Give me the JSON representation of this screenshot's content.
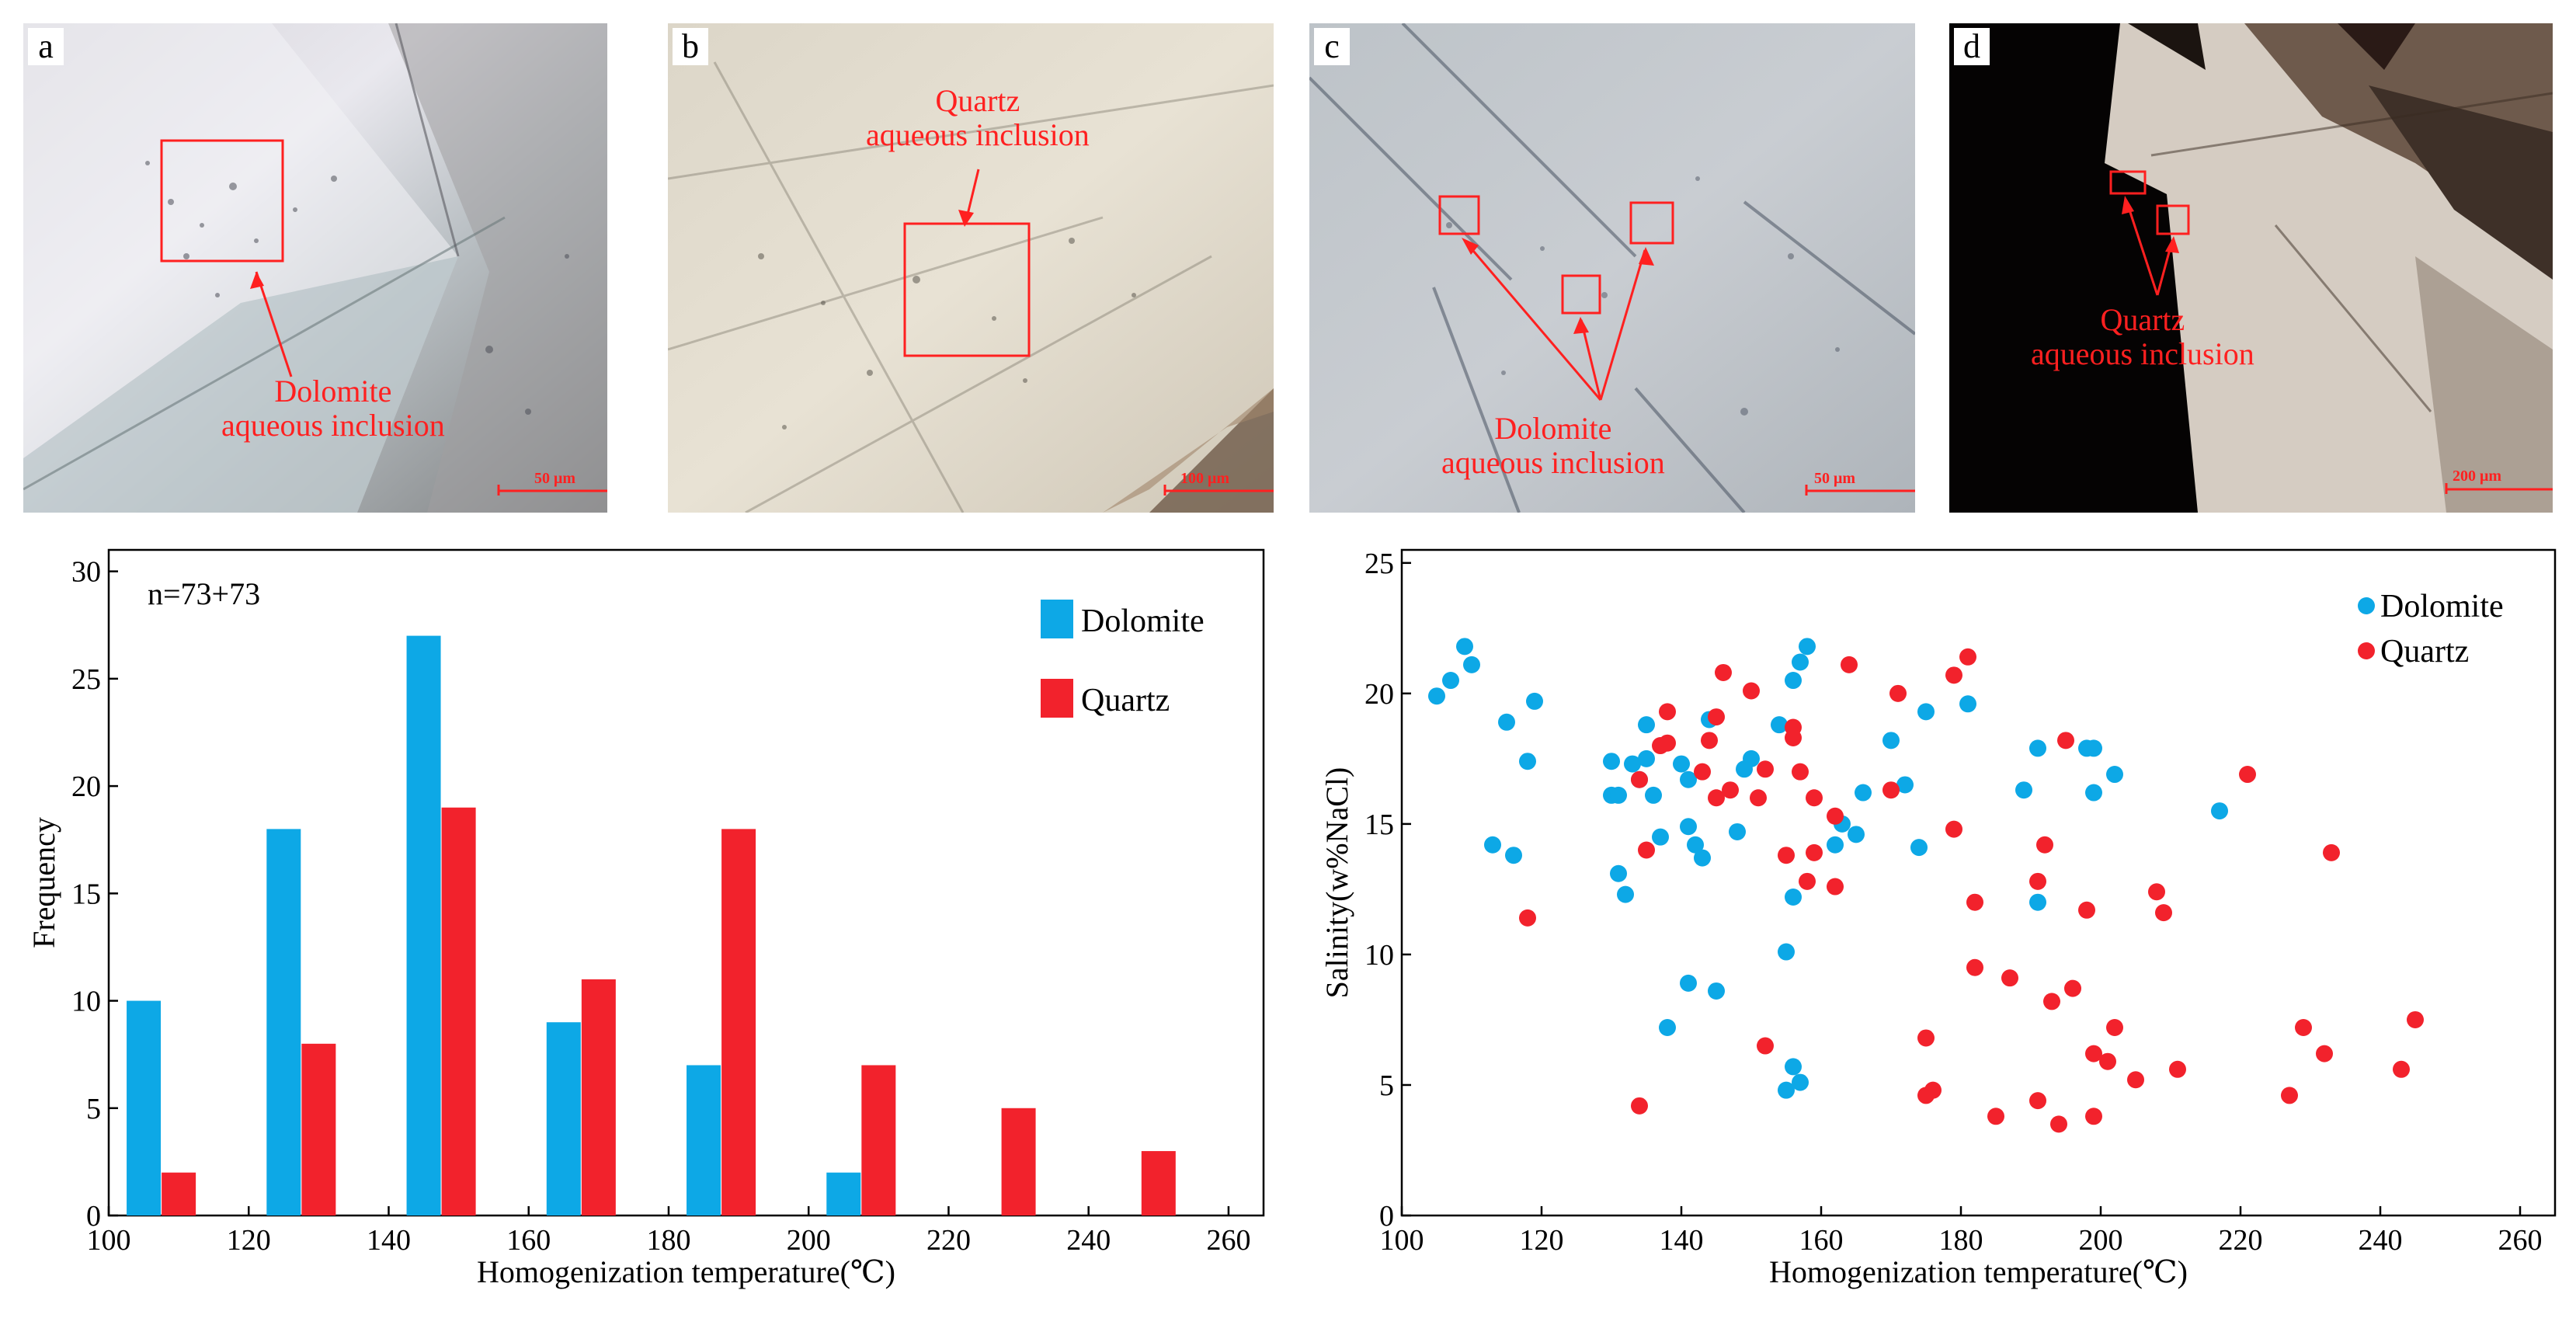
{
  "panels": [
    {
      "letter": "a",
      "annotation": [
        "Dolomite",
        "aqueous inclusion"
      ],
      "scale": "50 μm"
    },
    {
      "letter": "b",
      "annotation": [
        "Quartz",
        "aqueous inclusion"
      ],
      "scale": "100 μm"
    },
    {
      "letter": "c",
      "annotation": [
        "Dolomite",
        "aqueous inclusion"
      ],
      "scale": "50 μm"
    },
    {
      "letter": "d",
      "annotation": [
        "Quartz",
        "aqueous inclusion"
      ],
      "scale": "200 μm"
    }
  ],
  "colors": {
    "dolomite": "#0da8e6",
    "quartz": "#f2222c",
    "annotation": "#ff2020"
  },
  "chart_data": [
    {
      "type": "bar",
      "annotation": "n=73+73",
      "xlabel": "Homogenization temperature(℃)",
      "ylabel": "Frequency",
      "xlim": [
        100,
        265
      ],
      "ylim": [
        0,
        31
      ],
      "xticks": [
        100,
        120,
        140,
        160,
        180,
        200,
        220,
        240,
        260
      ],
      "yticks": [
        0,
        5,
        10,
        15,
        20,
        25,
        30
      ],
      "legend_position": "top-right",
      "series": [
        {
          "name": "Dolomite",
          "bins": [
            105,
            125,
            145,
            165,
            185,
            205
          ],
          "values": [
            10,
            18,
            27,
            9,
            7,
            2
          ]
        },
        {
          "name": "Quartz",
          "bins": [
            110,
            130,
            150,
            170,
            190,
            210,
            230,
            250
          ],
          "values": [
            2,
            8,
            19,
            11,
            18,
            7,
            5,
            3
          ]
        }
      ]
    },
    {
      "type": "scatter",
      "xlabel": "Homogenization temperature(℃)",
      "ylabel": "Salinity(w%NaCl)",
      "xlim": [
        100,
        265
      ],
      "ylim": [
        0,
        25.5
      ],
      "xticks": [
        100,
        120,
        140,
        160,
        180,
        200,
        220,
        240,
        260
      ],
      "yticks": [
        0,
        5,
        10,
        15,
        20,
        25
      ],
      "legend_position": "top-right",
      "series": [
        {
          "name": "Dolomite",
          "points": [
            [
              105,
              19.9
            ],
            [
              107,
              20.5
            ],
            [
              109,
              21.8
            ],
            [
              110,
              21.1
            ],
            [
              113,
              14.2
            ],
            [
              115,
              18.9
            ],
            [
              116,
              13.8
            ],
            [
              118,
              17.4
            ],
            [
              119,
              19.7
            ],
            [
              130,
              17.4
            ],
            [
              130,
              16.1
            ],
            [
              131,
              16.1
            ],
            [
              131,
              13.1
            ],
            [
              132,
              12.3
            ],
            [
              133,
              17.3
            ],
            [
              134,
              16.7
            ],
            [
              135,
              18.8
            ],
            [
              135,
              17.5
            ],
            [
              136,
              16.1
            ],
            [
              137,
              14.5
            ],
            [
              138,
              7.2
            ],
            [
              140,
              17.3
            ],
            [
              141,
              16.7
            ],
            [
              141,
              14.9
            ],
            [
              141,
              8.9
            ],
            [
              142,
              14.2
            ],
            [
              143,
              13.7
            ],
            [
              144,
              19.0
            ],
            [
              145,
              8.6
            ],
            [
              148,
              14.7
            ],
            [
              149,
              17.1
            ],
            [
              150,
              17.5
            ],
            [
              154,
              18.8
            ],
            [
              155,
              10.1
            ],
            [
              155,
              4.8
            ],
            [
              156,
              5.7
            ],
            [
              156,
              12.2
            ],
            [
              156,
              20.5
            ],
            [
              157,
              5.1
            ],
            [
              157,
              21.2
            ],
            [
              158,
              21.8
            ],
            [
              162,
              14.2
            ],
            [
              163,
              15.0
            ],
            [
              165,
              14.6
            ],
            [
              166,
              16.2
            ],
            [
              170,
              18.2
            ],
            [
              172,
              16.5
            ],
            [
              174,
              14.1
            ],
            [
              175,
              19.3
            ],
            [
              181,
              19.6
            ],
            [
              189,
              16.3
            ],
            [
              191,
              12.0
            ],
            [
              191,
              17.9
            ],
            [
              198,
              17.9
            ],
            [
              199,
              17.9
            ],
            [
              199,
              16.2
            ],
            [
              202,
              16.9
            ],
            [
              217,
              15.5
            ]
          ]
        },
        {
          "name": "Quartz",
          "points": [
            [
              118,
              11.4
            ],
            [
              134,
              4.2
            ],
            [
              134,
              16.7
            ],
            [
              135,
              14.0
            ],
            [
              137,
              18.0
            ],
            [
              138,
              18.1
            ],
            [
              138,
              19.3
            ],
            [
              143,
              17.0
            ],
            [
              144,
              18.2
            ],
            [
              145,
              16.0
            ],
            [
              145,
              19.1
            ],
            [
              146,
              20.8
            ],
            [
              147,
              16.3
            ],
            [
              150,
              20.1
            ],
            [
              151,
              16.0
            ],
            [
              152,
              6.5
            ],
            [
              152,
              17.1
            ],
            [
              155,
              13.8
            ],
            [
              156,
              18.7
            ],
            [
              156,
              18.3
            ],
            [
              157,
              17.0
            ],
            [
              158,
              12.8
            ],
            [
              159,
              13.9
            ],
            [
              159,
              16.0
            ],
            [
              162,
              12.6
            ],
            [
              162,
              15.3
            ],
            [
              164,
              21.1
            ],
            [
              170,
              16.3
            ],
            [
              171,
              20.0
            ],
            [
              175,
              6.8
            ],
            [
              175,
              4.6
            ],
            [
              176,
              4.8
            ],
            [
              179,
              14.8
            ],
            [
              179,
              20.7
            ],
            [
              181,
              21.4
            ],
            [
              182,
              12.0
            ],
            [
              182,
              9.5
            ],
            [
              185,
              3.8
            ],
            [
              187,
              9.1
            ],
            [
              191,
              12.8
            ],
            [
              191,
              4.4
            ],
            [
              192,
              14.2
            ],
            [
              193,
              8.2
            ],
            [
              194,
              3.5
            ],
            [
              195,
              18.2
            ],
            [
              196,
              8.7
            ],
            [
              198,
              11.7
            ],
            [
              199,
              6.2
            ],
            [
              199,
              3.8
            ],
            [
              201,
              5.9
            ],
            [
              202,
              7.2
            ],
            [
              205,
              5.2
            ],
            [
              208,
              12.4
            ],
            [
              209,
              11.6
            ],
            [
              211,
              5.6
            ],
            [
              221,
              16.9
            ],
            [
              227,
              4.6
            ],
            [
              229,
              7.2
            ],
            [
              232,
              6.2
            ],
            [
              233,
              13.9
            ],
            [
              243,
              5.6
            ],
            [
              245,
              7.5
            ]
          ]
        }
      ]
    }
  ]
}
